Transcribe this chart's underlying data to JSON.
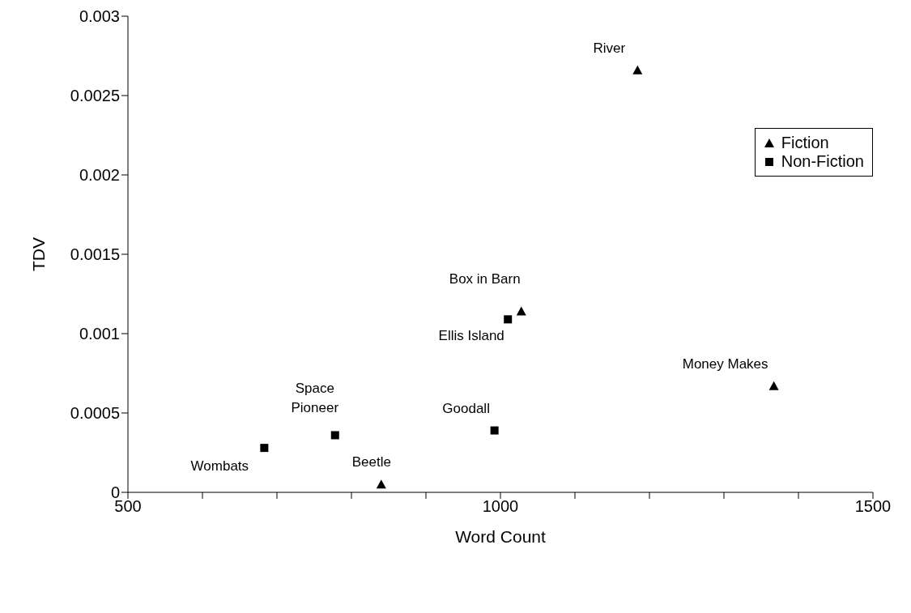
{
  "chart_data": {
    "type": "scatter",
    "xlabel": "Word Count",
    "ylabel": "TDV",
    "xlim": [
      500,
      1500
    ],
    "ylim": [
      0,
      0.003
    ],
    "xticks": [
      500,
      {
        "value": 600,
        "label": null
      },
      {
        "value": 700,
        "label": null
      },
      {
        "value": 800,
        "label": null
      },
      {
        "value": 900,
        "label": null
      },
      1000,
      {
        "value": 1100,
        "label": null
      },
      {
        "value": 1200,
        "label": null
      },
      {
        "value": 1300,
        "label": null
      },
      {
        "value": 1400,
        "label": null
      },
      1500
    ],
    "yticks": [
      0,
      0.0005,
      0.001,
      0.0015,
      0.002,
      0.0025,
      0.003
    ],
    "grid": false,
    "legend": "top right",
    "series": [
      {
        "name": "Fiction",
        "color": "#000000",
        "marker": "triangle",
        "x": [
          1184,
          1028,
          1367,
          840
        ],
        "values": [
          0.00266,
          0.00114,
          0.00067,
          5e-05
        ]
      },
      {
        "name": "Non-Fiction",
        "color": "#000000",
        "marker": "square",
        "x": [
          1010,
          992,
          778,
          683
        ],
        "values": [
          0.00109,
          0.00039,
          0.00036,
          0.00028
        ]
      }
    ],
    "annotations": [
      {
        "text": "River",
        "x": 1184,
        "y": 0.00266
      },
      {
        "text": "Box in Barn",
        "x": 1028,
        "y": 0.00114
      },
      {
        "text": "Money Makes",
        "x": 1367,
        "y": 0.00067
      },
      {
        "text": "Beetle",
        "x": 840,
        "y": 5e-05
      },
      {
        "text": "Ellis Island",
        "x": 1010,
        "y": 0.00109
      },
      {
        "text": "Goodall",
        "x": 992,
        "y": 0.00039
      },
      {
        "text": "Space Pioneer",
        "x": 778,
        "y": 0.00036
      },
      {
        "text": "Wombats",
        "x": 683,
        "y": 0.00028
      }
    ]
  }
}
